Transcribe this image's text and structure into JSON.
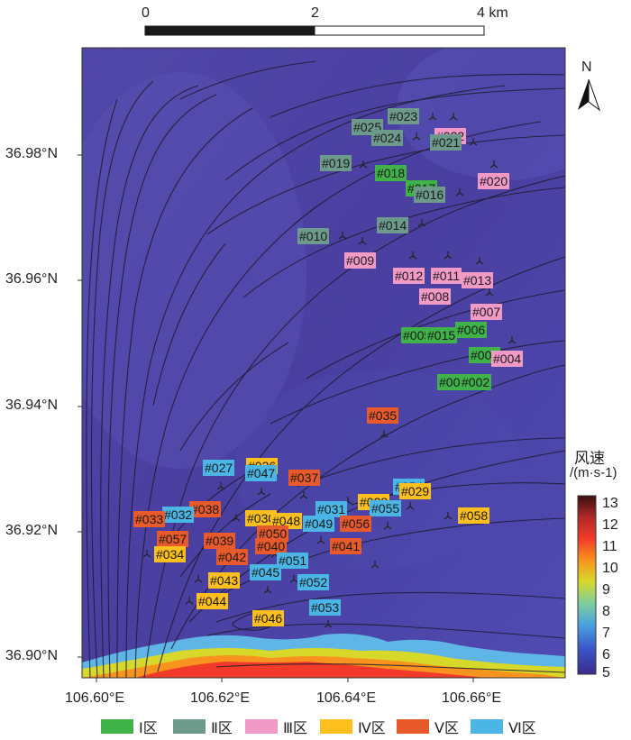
{
  "scale_bar": {
    "ticks": [
      "0",
      "2",
      "4 km"
    ]
  },
  "north_label": "N",
  "axes": {
    "y_labels": [
      "36.98°N",
      "36.96°N",
      "36.94°N",
      "36.92°N",
      "36.90°N"
    ],
    "x_labels": [
      "106.60°E",
      "106.62°E",
      "106.64°E",
      "106.66°E"
    ]
  },
  "colorbar": {
    "title_line1": "风速",
    "title_line2": "/(m·s-1)",
    "ticks": [
      "13",
      "12",
      "11",
      "10",
      "9",
      "8",
      "7",
      "6",
      "5"
    ],
    "colors": [
      "#3a0d12",
      "#b02a26",
      "#f23a2a",
      "#f7931e",
      "#d8d82a",
      "#7fcf9a",
      "#4aa3e0",
      "#3a55c8",
      "#3b2a8a"
    ]
  },
  "legend": [
    {
      "label": "Ⅰ区",
      "color": "#3fb24a"
    },
    {
      "label": "Ⅱ区",
      "color": "#6e9a8c"
    },
    {
      "label": "Ⅲ区",
      "color": "#f29ac6"
    },
    {
      "label": "Ⅳ区",
      "color": "#fcbf1e"
    },
    {
      "label": "Ⅴ区",
      "color": "#e8592b"
    },
    {
      "label": "Ⅵ区",
      "color": "#4bb6e6"
    }
  ],
  "turbines": [
    {
      "id": "#023",
      "zone": 1
    },
    {
      "id": "#025",
      "zone": 1
    },
    {
      "id": "#024",
      "zone": 1
    },
    {
      "id": "#022",
      "zone": 2
    },
    {
      "id": "#021",
      "zone": 1
    },
    {
      "id": "#019",
      "zone": 1
    },
    {
      "id": "#018",
      "zone": 0
    },
    {
      "id": "#020",
      "zone": 2
    },
    {
      "id": "#017",
      "zone": 0
    },
    {
      "id": "#016",
      "zone": 1
    },
    {
      "id": "#014",
      "zone": 1
    },
    {
      "id": "#010",
      "zone": 1
    },
    {
      "id": "#009",
      "zone": 2
    },
    {
      "id": "#012",
      "zone": 2
    },
    {
      "id": "#011",
      "zone": 2
    },
    {
      "id": "#013",
      "zone": 2
    },
    {
      "id": "#008",
      "zone": 2
    },
    {
      "id": "#007",
      "zone": 2
    },
    {
      "id": "#006",
      "zone": 0
    },
    {
      "id": "#005",
      "zone": 0
    },
    {
      "id": "#015",
      "zone": 0
    },
    {
      "id": "#003",
      "zone": 0
    },
    {
      "id": "#004",
      "zone": 2
    },
    {
      "id": "#001",
      "zone": 0
    },
    {
      "id": "#002",
      "zone": 0
    },
    {
      "id": "#035",
      "zone": 4
    },
    {
      "id": "#027",
      "zone": 5
    },
    {
      "id": "#026",
      "zone": 3
    },
    {
      "id": "#047",
      "zone": 5
    },
    {
      "id": "#037",
      "zone": 4
    },
    {
      "id": "#054",
      "zone": 5
    },
    {
      "id": "#029",
      "zone": 3
    },
    {
      "id": "#028",
      "zone": 3
    },
    {
      "id": "#038",
      "zone": 4
    },
    {
      "id": "#032",
      "zone": 5
    },
    {
      "id": "#033",
      "zone": 4
    },
    {
      "id": "#031",
      "zone": 5
    },
    {
      "id": "#055",
      "zone": 5
    },
    {
      "id": "#058",
      "zone": 3
    },
    {
      "id": "#030",
      "zone": 3
    },
    {
      "id": "#048",
      "zone": 3
    },
    {
      "id": "#049",
      "zone": 5
    },
    {
      "id": "#056",
      "zone": 4
    },
    {
      "id": "#057",
      "zone": 4
    },
    {
      "id": "#039",
      "zone": 4
    },
    {
      "id": "#050",
      "zone": 4
    },
    {
      "id": "#040",
      "zone": 4
    },
    {
      "id": "#041",
      "zone": 4
    },
    {
      "id": "#034",
      "zone": 3
    },
    {
      "id": "#042",
      "zone": 4
    },
    {
      "id": "#051",
      "zone": 5
    },
    {
      "id": "#045",
      "zone": 5
    },
    {
      "id": "#052",
      "zone": 5
    },
    {
      "id": "#043",
      "zone": 3
    },
    {
      "id": "#044",
      "zone": 3
    },
    {
      "id": "#053",
      "zone": 5
    },
    {
      "id": "#046",
      "zone": 3
    }
  ]
}
